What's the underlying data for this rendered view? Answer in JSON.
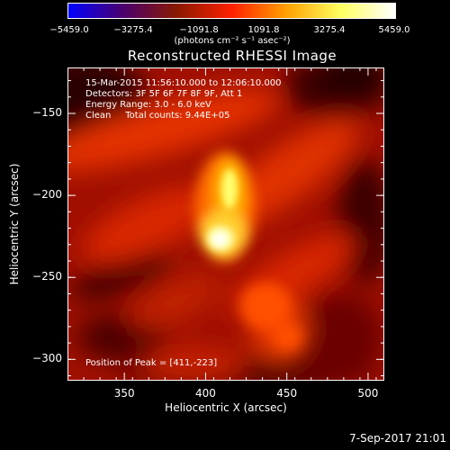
{
  "colorbar": {
    "tick_labels": [
      "−5459.0",
      "−3275.4",
      "−1091.8",
      "1091.8",
      "3275.4",
      "5459.0"
    ],
    "units": "(photons cm⁻² s⁻¹ asec⁻²)",
    "colormap": [
      "#0000ff",
      "#4b006e",
      "#8a1a00",
      "#ff2000",
      "#ffa000",
      "#ffff60",
      "#ffffff"
    ]
  },
  "chart_data": {
    "type": "heatmap",
    "title": "Reconstructed RHESSI Image",
    "xlabel": "Heliocentric X (arcsec)",
    "ylabel": "Heliocentric Y (arcsec)",
    "xlim": [
      315,
      510
    ],
    "ylim": [
      -313,
      -122
    ],
    "xticks": [
      350,
      400,
      450,
      500
    ],
    "yticks": [
      -150,
      -200,
      -250,
      -300
    ],
    "peak": {
      "x": 411,
      "y": -223
    },
    "info_lines": [
      "15-Mar-2015 11:56:10.000 to 12:06:10.000",
      "Detectors: 3F 5F 6F 7F 8F 9F, Att 1",
      "Energy Range: 3.0 - 6.0 keV",
      "Clean     Total counts: 9.44E+05"
    ],
    "peak_label": "Position of Peak = [411,-223]"
  },
  "footer": {
    "date": "7-Sep-2017 21:01"
  }
}
